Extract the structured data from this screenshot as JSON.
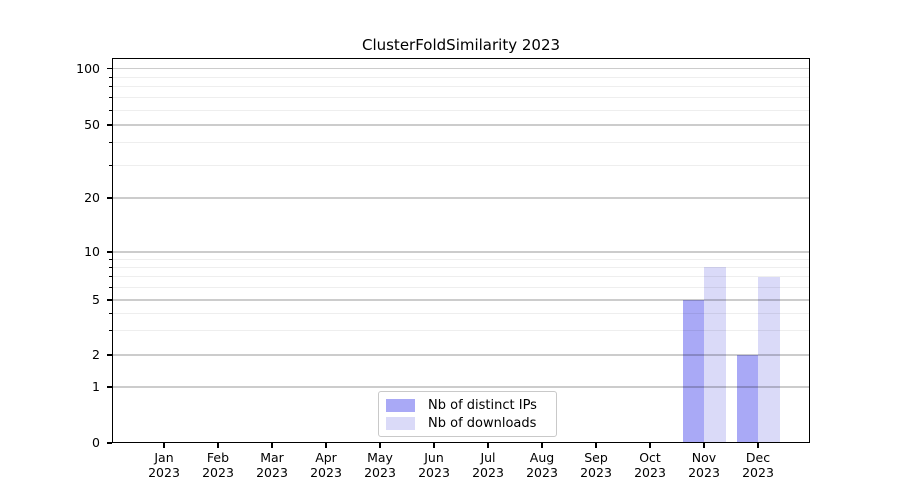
{
  "page": {
    "background": "#ffffff"
  },
  "chart_data": {
    "type": "bar",
    "title": "ClusterFoldSimilarity 2023",
    "x": {
      "months": [
        "Jan",
        "Feb",
        "Mar",
        "Apr",
        "May",
        "Jun",
        "Jul",
        "Aug",
        "Sep",
        "Oct",
        "Nov",
        "Dec"
      ],
      "year": "2023",
      "categories": [
        "Jan 2023",
        "Feb 2023",
        "Mar 2023",
        "Apr 2023",
        "May 2023",
        "Jun 2023",
        "Jul 2023",
        "Aug 2023",
        "Sep 2023",
        "Oct 2023",
        "Nov 2023",
        "Dec 2023"
      ]
    },
    "y_axis": {
      "ticks": [
        0,
        1,
        2,
        5,
        10,
        20,
        50,
        100
      ],
      "minor_ticks": [
        3,
        4,
        6,
        7,
        8,
        9,
        30,
        40,
        60,
        70,
        80,
        90
      ],
      "range": [
        0,
        110
      ],
      "scale": "log-like (linear segment between 0 and 1)",
      "grid": "horizontal major and minor gridlines, drawn over bars"
    },
    "series": [
      {
        "name": "Nb of distinct IPs",
        "color": "#a9a9f6",
        "values": [
          0,
          0,
          0,
          0,
          0,
          0,
          0,
          0,
          0,
          0,
          5,
          2
        ]
      },
      {
        "name": "Nb of downloads",
        "color": "#dadaf8",
        "values": [
          0,
          0,
          0,
          0,
          0,
          0,
          0,
          0,
          0,
          0,
          8,
          7
        ]
      }
    ],
    "legend": {
      "entries": [
        "Nb of distinct IPs",
        "Nb of downloads"
      ],
      "position": "bottom-center inside plot"
    },
    "colors": {
      "distinct_ips": "#a9a9f6",
      "downloads": "#dadaf8",
      "grid_major": "#c9c9c9",
      "grid_minor": "#ededed",
      "axis": "#000000"
    }
  }
}
